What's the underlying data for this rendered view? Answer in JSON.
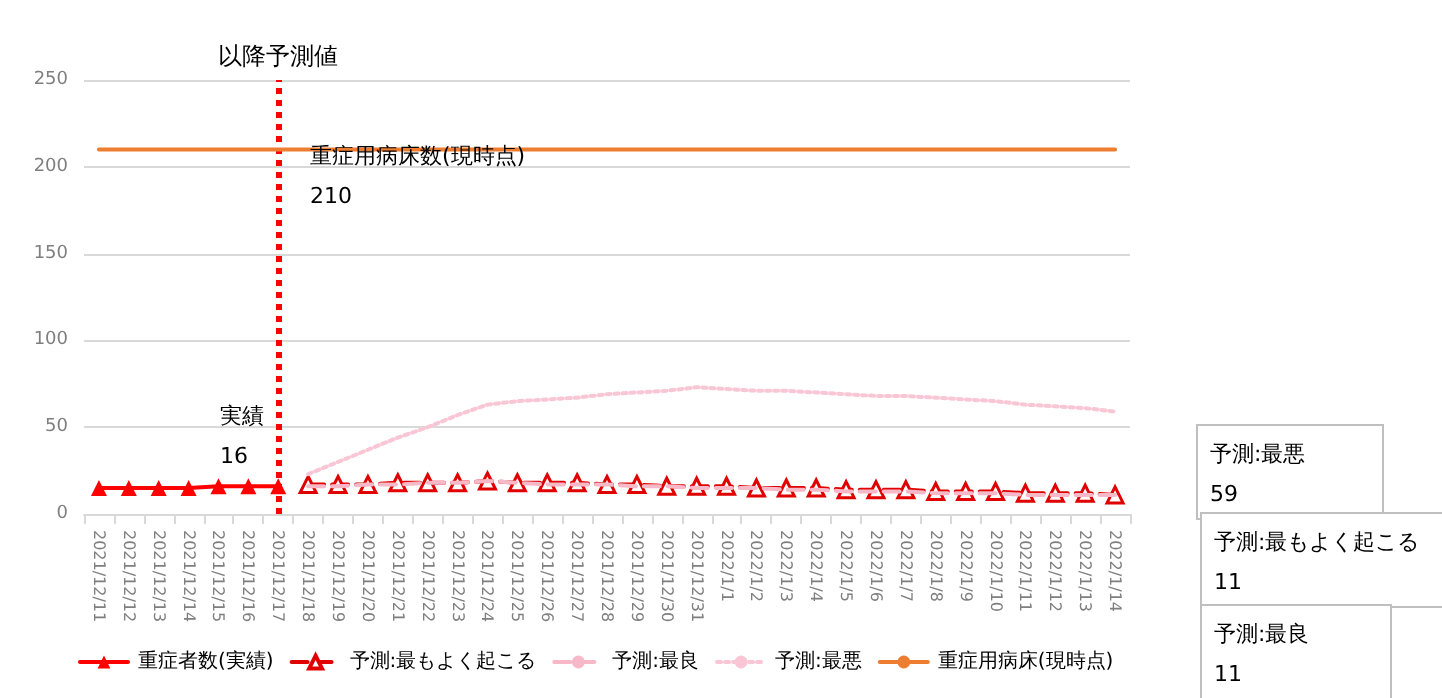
{
  "chart_data": {
    "type": "line",
    "categories": [
      "2021/12/11",
      "2021/12/12",
      "2021/12/13",
      "2021/12/14",
      "2021/12/15",
      "2021/12/16",
      "2021/12/17",
      "2021/12/18",
      "2021/12/19",
      "2021/12/20",
      "2021/12/21",
      "2021/12/22",
      "2021/12/23",
      "2021/12/24",
      "2021/12/25",
      "2021/12/26",
      "2021/12/27",
      "2021/12/28",
      "2021/12/29",
      "2021/12/30",
      "2021/12/31",
      "2022/1/1",
      "2022/1/2",
      "2022/1/3",
      "2022/1/4",
      "2022/1/5",
      "2022/1/6",
      "2022/1/7",
      "2022/1/8",
      "2022/1/9",
      "2022/1/10",
      "2022/1/11",
      "2022/1/12",
      "2022/1/13",
      "2022/1/14"
    ],
    "series": [
      {
        "name": "重症者数(実績)",
        "color": "#ff0000",
        "marker": "triangle",
        "line_style": "solid",
        "values": [
          15,
          15,
          15,
          15,
          16,
          16,
          16,
          null,
          null,
          null,
          null,
          null,
          null,
          null,
          null,
          null,
          null,
          null,
          null,
          null,
          null,
          null,
          null,
          null,
          null,
          null,
          null,
          null,
          null,
          null,
          null,
          null,
          null,
          null,
          null
        ]
      },
      {
        "name": "予測:最もよく起こる",
        "color": "#e00000",
        "marker": "triangle",
        "line_style": "dashed",
        "values": [
          null,
          null,
          null,
          null,
          null,
          null,
          null,
          17,
          17,
          17,
          18,
          18,
          18,
          19,
          18,
          18,
          18,
          17,
          17,
          16,
          16,
          16,
          15,
          15,
          15,
          14,
          14,
          14,
          13,
          13,
          13,
          12,
          12,
          12,
          11
        ]
      },
      {
        "name": "予測:最良",
        "color": "#f7b8c8",
        "marker": "none",
        "line_style": "dashed",
        "values": [
          null,
          null,
          null,
          null,
          null,
          null,
          null,
          16,
          16,
          17,
          17,
          18,
          18,
          19,
          18,
          17,
          17,
          17,
          16,
          16,
          15,
          15,
          15,
          14,
          14,
          13,
          13,
          13,
          12,
          12,
          12,
          11,
          11,
          11,
          11
        ]
      },
      {
        "name": "予測:最悪",
        "color": "#f9c6d6",
        "marker": "none",
        "line_style": "dotted",
        "values": [
          null,
          null,
          null,
          null,
          null,
          null,
          null,
          23,
          30,
          37,
          44,
          50,
          57,
          63,
          65,
          66,
          67,
          69,
          70,
          71,
          73,
          72,
          71,
          71,
          70,
          69,
          68,
          68,
          67,
          66,
          65,
          63,
          62,
          61,
          59
        ]
      },
      {
        "name": "重症用病床(現時点)",
        "color": "#ed7d31",
        "marker": "none",
        "line_style": "solid",
        "values": [
          210,
          210,
          210,
          210,
          210,
          210,
          210,
          210,
          210,
          210,
          210,
          210,
          210,
          210,
          210,
          210,
          210,
          210,
          210,
          210,
          210,
          210,
          210,
          210,
          210,
          210,
          210,
          210,
          210,
          210,
          210,
          210,
          210,
          210,
          210
        ]
      }
    ],
    "ylim": [
      0,
      250
    ],
    "yticks": [
      0,
      50,
      100,
      150,
      200,
      250
    ],
    "grid": "y",
    "legend": "bottom",
    "ref_lines": [
      {
        "axis": "x",
        "value": "2021/12/17",
        "label": "以降予測値",
        "color": "#ff0000",
        "line_style": "dotted"
      }
    ],
    "annotations": [
      "重症用病床数(現時点)\n210",
      "実績\n16",
      "予測:最悪\n59",
      "予測:最もよく起こる\n11",
      "予測:最良\n11"
    ]
  }
}
